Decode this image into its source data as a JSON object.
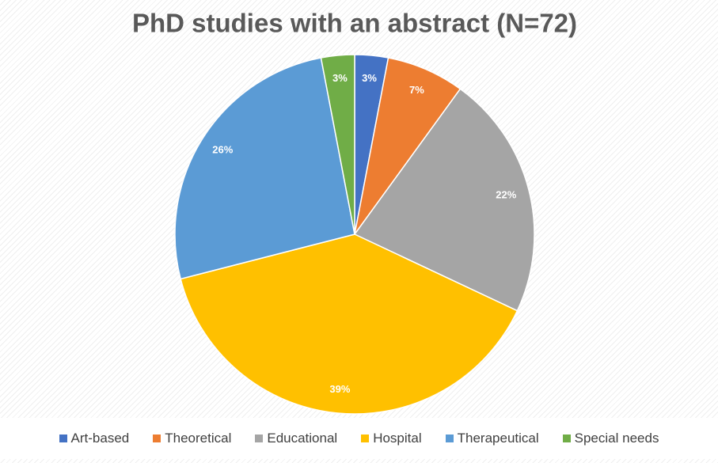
{
  "chart_data": {
    "type": "pie",
    "title": "PhD studies with an abstract (N=72)",
    "categories": [
      "Art-based",
      "Theoretical",
      "Educational",
      "Hospital",
      "Therapeutical",
      "Special needs"
    ],
    "values": [
      3,
      7,
      22,
      39,
      26,
      3
    ],
    "value_labels": [
      "3%",
      "7%",
      "22%",
      "39%",
      "26%",
      "3%"
    ],
    "colors": [
      "#4472c4",
      "#ed7d31",
      "#a5a5a5",
      "#ffc000",
      "#5b9bd5",
      "#70ad47"
    ],
    "legend": "bottom"
  }
}
